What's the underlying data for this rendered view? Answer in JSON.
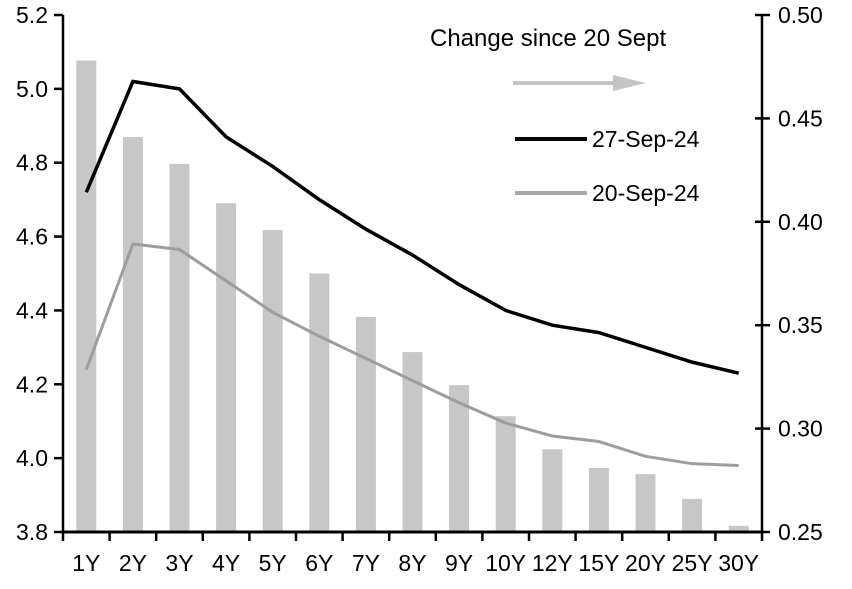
{
  "legend": {
    "title": "Change since 20 Sept",
    "series1_label": "27-Sep-24",
    "series2_label": "20-Sep-24"
  },
  "colors": {
    "bar": "#c7c7c7",
    "line_black": "#000000",
    "line_gray": "#9d9d9d",
    "arrow": "#c4c4c4",
    "axis": "#000000"
  },
  "chart_data": {
    "type": "combo-bar-line",
    "title": "",
    "categories": [
      "1Y",
      "2Y",
      "3Y",
      "4Y",
      "5Y",
      "6Y",
      "7Y",
      "8Y",
      "9Y",
      "10Y",
      "12Y",
      "15Y",
      "20Y",
      "25Y",
      "30Y"
    ],
    "series": [
      {
        "name": "Change since 20 Sept",
        "type": "bar",
        "axis": "right",
        "values": [
          0.478,
          0.441,
          0.428,
          0.409,
          0.396,
          0.375,
          0.354,
          0.337,
          0.321,
          0.306,
          0.29,
          0.281,
          0.278,
          0.266,
          0.253
        ]
      },
      {
        "name": "27-Sep-24",
        "type": "line",
        "axis": "left",
        "values": [
          4.72,
          5.02,
          5.0,
          4.87,
          4.79,
          4.7,
          4.62,
          4.55,
          4.47,
          4.4,
          4.36,
          4.34,
          4.3,
          4.26,
          4.23
        ]
      },
      {
        "name": "20-Sep-24",
        "type": "line",
        "axis": "left",
        "values": [
          4.24,
          4.58,
          4.565,
          4.48,
          4.395,
          4.33,
          4.27,
          4.21,
          4.15,
          4.095,
          4.06,
          4.045,
          4.005,
          3.985,
          3.98
        ]
      }
    ],
    "left_axis": {
      "range": [
        3.8,
        5.2
      ],
      "ticks": [
        5.2,
        5.0,
        4.8,
        4.6,
        4.4,
        4.2,
        4.0,
        3.8
      ],
      "labels": [
        "5.2",
        "5.0",
        "4.8",
        "4.6",
        "4.4",
        "4.2",
        "4.0",
        "3.8"
      ]
    },
    "right_axis": {
      "range": [
        0.25,
        0.5
      ],
      "ticks": [
        0.5,
        0.45,
        0.4,
        0.35,
        0.3,
        0.25
      ],
      "labels": [
        "0.50",
        "0.45",
        "0.40",
        "0.35",
        "0.30",
        "0.25"
      ]
    },
    "grid": false,
    "legend_position": "top-center-inside"
  }
}
